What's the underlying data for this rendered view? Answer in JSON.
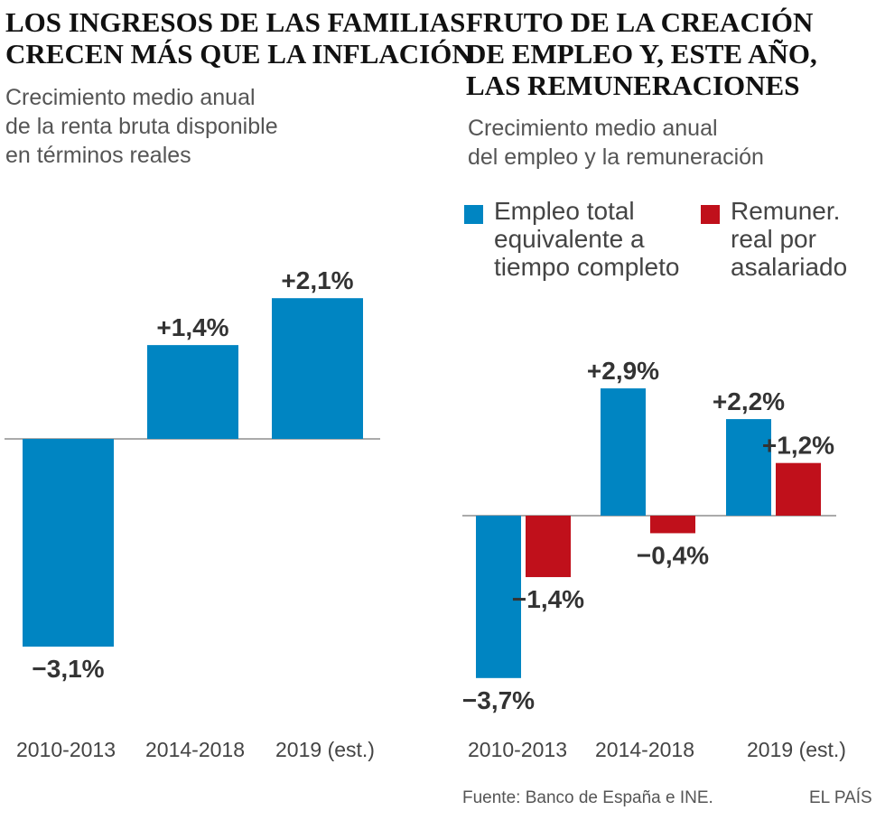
{
  "chart_data": [
    {
      "type": "bar",
      "title": "LOS INGRESOS DE LAS FAMILIAS\nCRECEN MÁS QUE LA INFLACIÓN",
      "subtitle": "Crecimiento medio anual\nde la renta bruta disponible\nen términos reales",
      "categories": [
        "2010-2013",
        "2014-2018",
        "2019 (est.)"
      ],
      "series": [
        {
          "name": "Renta bruta disponible",
          "values": [
            -3.1,
            1.4,
            2.1
          ],
          "labels": [
            "−3,1%",
            "+1,4%",
            "+2,1%"
          ],
          "color": "#0085c2"
        }
      ],
      "xlabel": "",
      "ylabel": "",
      "ylim": [
        -3.5,
        2.5
      ],
      "grid": false
    },
    {
      "type": "bar",
      "title": "FRUTO DE LA CREACIÓN\nDE EMPLEO Y, ESTE AÑO,\nLAS REMUNERACIONES",
      "subtitle": "Crecimiento medio anual\ndel empleo y la remuneración",
      "categories": [
        "2010-2013",
        "2014-2018",
        "2019 (est.)"
      ],
      "series": [
        {
          "name": "Empleo total\nequivalente a\ntiempo completo",
          "values": [
            -3.7,
            2.9,
            2.2
          ],
          "labels": [
            "−3,7%",
            "+2,9%",
            "+2,2%"
          ],
          "color": "#0085c2"
        },
        {
          "name": "Remuner.\nreal por\nasalariado",
          "values": [
            -1.4,
            -0.4,
            1.2
          ],
          "labels": [
            "−1,4%",
            "−0,4%",
            "+1,2%"
          ],
          "color": "#c0101b"
        }
      ],
      "legend": "top",
      "xlabel": "",
      "ylabel": "",
      "ylim": [
        -4,
        3.5
      ],
      "grid": false
    }
  ],
  "footer": {
    "source": "Fuente: Banco de España e INE.",
    "brand": "EL PAÍS"
  }
}
